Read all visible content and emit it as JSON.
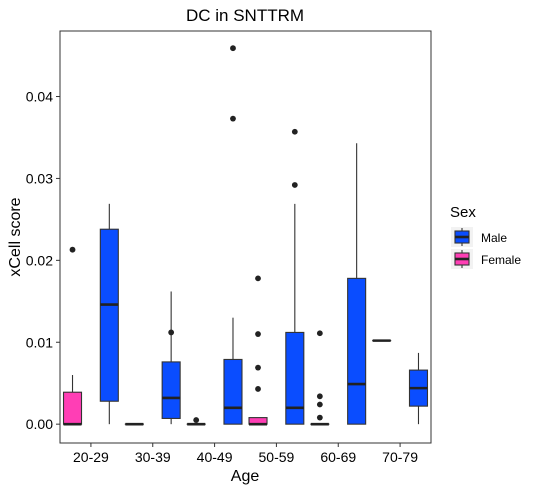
{
  "chart_data": {
    "type": "boxplot",
    "title": "DC in SNTTRM",
    "xlabel": "Age",
    "ylabel": "xCell score",
    "categories": [
      "20-29",
      "30-39",
      "40-49",
      "50-59",
      "60-69",
      "70-79"
    ],
    "y_ticks": [
      "0.00",
      "0.01",
      "0.02",
      "0.03",
      "0.04"
    ],
    "y_tick_values": [
      0,
      0.01,
      0.02,
      0.03,
      0.04
    ],
    "ylim": [
      -0.0023,
      0.048
    ],
    "grid": false,
    "legend": {
      "title": "Sex",
      "position": "right",
      "entries": [
        {
          "label": "Male",
          "color": "#0A4DFF"
        },
        {
          "label": "Female",
          "color": "#FF3EB5"
        }
      ]
    },
    "series": [
      {
        "name": "Female",
        "color": "#FF3EB5",
        "boxes": [
          {
            "category": "20-29",
            "min": 0.0,
            "q1": 0.0,
            "median": 0.0,
            "q3": 0.0039,
            "max": 0.006,
            "outliers": [
              0.0213
            ]
          },
          {
            "category": "30-39",
            "min": 0.0,
            "q1": 0.0,
            "median": 0.0,
            "q3": 0.0,
            "max": 0.0,
            "outliers": []
          },
          {
            "category": "40-49",
            "min": 0.0,
            "q1": 0.0,
            "median": 0.0,
            "q3": 0.0,
            "max": 0.0,
            "outliers": [
              0.0005
            ]
          },
          {
            "category": "50-59",
            "min": 0.0,
            "q1": 0.0,
            "median": 0.0,
            "q3": 0.0008,
            "max": 0.0008,
            "outliers": [
              0.0178,
              0.011,
              0.0069,
              0.0043
            ]
          },
          {
            "category": "60-69",
            "min": 0.0,
            "q1": 0.0,
            "median": 0.0,
            "q3": 0.0,
            "max": 0.0,
            "outliers": [
              0.0111,
              0.0034,
              0.0024,
              0.0008
            ]
          },
          {
            "category": "70-79",
            "min": 0.0102,
            "q1": 0.0102,
            "median": 0.0102,
            "q3": 0.0102,
            "max": 0.0102,
            "outliers": []
          }
        ]
      },
      {
        "name": "Male",
        "color": "#0A4DFF",
        "boxes": [
          {
            "category": "20-29",
            "min": 0.0,
            "q1": 0.0028,
            "median": 0.0146,
            "q3": 0.0238,
            "max": 0.0269,
            "outliers": []
          },
          {
            "category": "30-39",
            "min": 0.0,
            "q1": 0.0007,
            "median": 0.0032,
            "q3": 0.0076,
            "max": 0.0162,
            "outliers": [
              0.0112
            ]
          },
          {
            "category": "40-49",
            "min": 0.0,
            "q1": 0.0,
            "median": 0.002,
            "q3": 0.0079,
            "max": 0.013,
            "outliers": [
              0.0459,
              0.0373
            ]
          },
          {
            "category": "50-59",
            "min": 0.0,
            "q1": 0.0,
            "median": 0.002,
            "q3": 0.0112,
            "max": 0.0269,
            "outliers": [
              0.0357,
              0.0292
            ]
          },
          {
            "category": "60-69",
            "min": 0.0,
            "q1": 0.0,
            "median": 0.0049,
            "q3": 0.0178,
            "max": 0.0343,
            "outliers": []
          },
          {
            "category": "70-79",
            "min": 0.0,
            "q1": 0.0022,
            "median": 0.0044,
            "q3": 0.0066,
            "max": 0.0087,
            "outliers": []
          }
        ]
      }
    ]
  }
}
